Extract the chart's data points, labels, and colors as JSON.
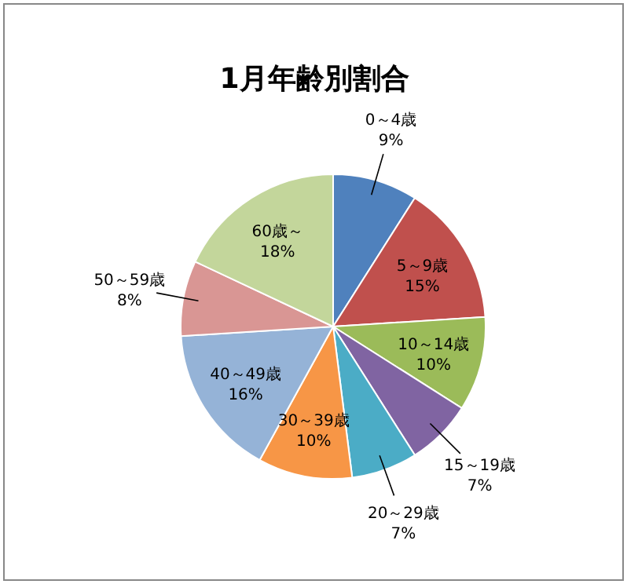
{
  "chart_data": {
    "type": "pie",
    "title": "1月年齢別割合",
    "categories": [
      "0～4歳",
      "5～9歳",
      "10～14歳",
      "15～19歳",
      "20～29歳",
      "30～39歳",
      "40～49歳",
      "50～59歳",
      "60歳～"
    ],
    "values": [
      9,
      15,
      10,
      7,
      7,
      10,
      16,
      8,
      18
    ],
    "value_labels": [
      "9%",
      "15%",
      "10%",
      "7%",
      "7%",
      "10%",
      "16%",
      "8%",
      "18%"
    ],
    "colors": [
      "#4f81bd",
      "#c0504d",
      "#9bbb59",
      "#8064a2",
      "#4bacc6",
      "#f79646",
      "#95b3d7",
      "#d99694",
      "#c3d69b"
    ]
  }
}
